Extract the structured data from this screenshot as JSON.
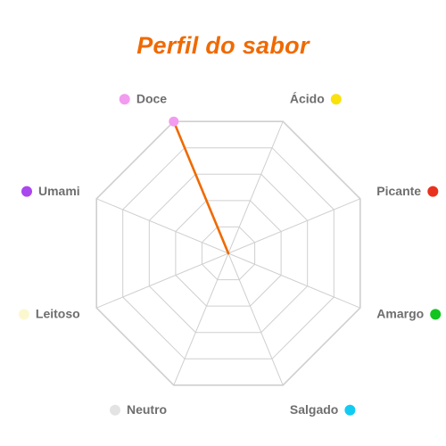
{
  "chart_data": {
    "type": "radar",
    "title": "Perfil do sabor",
    "scale_max": 5,
    "rings": 5,
    "grid": true,
    "series_color": "#ef6a00",
    "grid_color": "#cfcfcf",
    "axes": [
      {
        "label": "Doce",
        "value": 5,
        "dot_color": "#f29bf0",
        "dot_side": "left"
      },
      {
        "label": "Ácido",
        "value": 0,
        "dot_color": "#f9e10c",
        "dot_side": "right"
      },
      {
        "label": "Picante",
        "value": 0,
        "dot_color": "#e8321e",
        "dot_side": "right"
      },
      {
        "label": "Amargo",
        "value": 0,
        "dot_color": "#12c41e",
        "dot_side": "right"
      },
      {
        "label": "Salgado",
        "value": 0,
        "dot_color": "#12cbf2",
        "dot_side": "right"
      },
      {
        "label": "Neutro",
        "value": 0,
        "dot_color": "#e3e3e3",
        "dot_side": "left"
      },
      {
        "label": "Leitoso",
        "value": 0,
        "dot_color": "#fbf8cf",
        "dot_side": "left"
      },
      {
        "label": "Umami",
        "value": 0,
        "dot_color": "#ab47ee",
        "dot_side": "left"
      }
    ]
  }
}
